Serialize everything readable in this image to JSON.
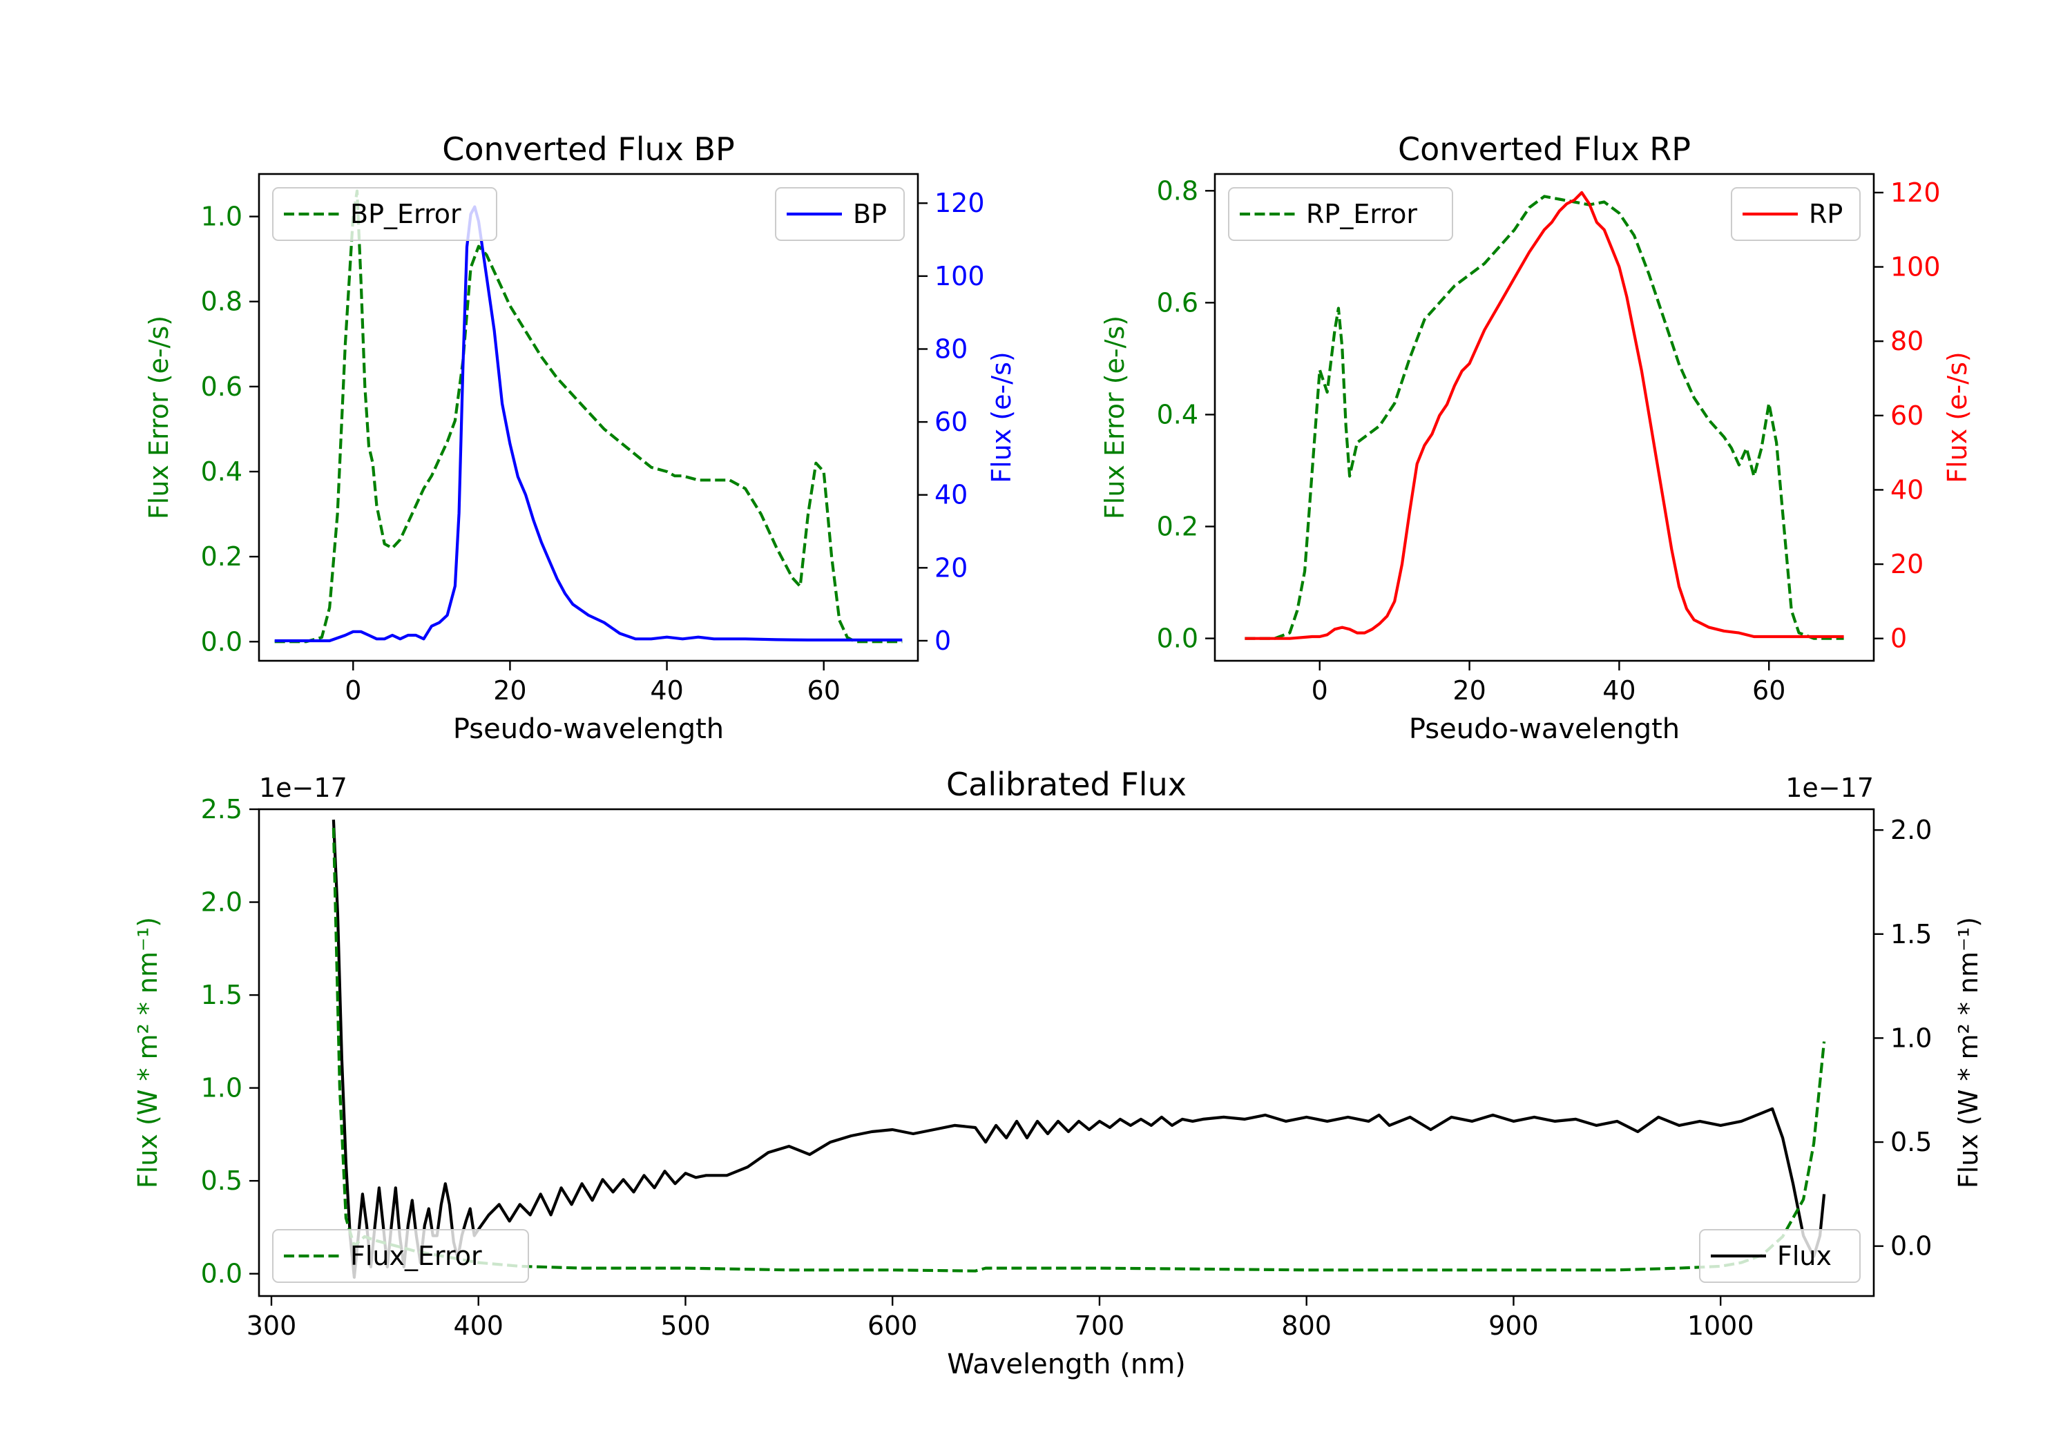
{
  "chart_data": [
    {
      "type": "line",
      "title": "Converted Flux BP",
      "xlabel": "Pseudo-wavelength",
      "ylabel_left": "Flux Error (e-/s)",
      "ylabel_right": "Flux (e-/s)",
      "xlim": [
        -12,
        72
      ],
      "xticks": [
        0,
        20,
        40,
        60
      ],
      "ylim_left": [
        -0.045,
        1.1
      ],
      "yticks_left": [
        0.0,
        0.2,
        0.4,
        0.6,
        0.8,
        1.0
      ],
      "ytick_labels_left": [
        "0.0",
        "0.2",
        "0.4",
        "0.6",
        "0.8",
        "1.0"
      ],
      "ylim_right": [
        -5.5,
        128
      ],
      "yticks_right": [
        0,
        20,
        40,
        60,
        80,
        100,
        120
      ],
      "color_left": "#008000",
      "color_right": "#0000ff",
      "legend_left_placement": "upper-left",
      "legend_right_placement": "upper-right",
      "series": [
        {
          "name": "BP_Error",
          "axis": "left",
          "style": "dashed",
          "color": "#008000",
          "x": [
            -10,
            -6,
            -4,
            -3,
            -2,
            -1,
            0,
            0.5,
            1,
            1.5,
            2,
            2.5,
            3,
            4,
            5,
            6,
            7,
            8,
            9,
            10,
            11,
            12,
            13,
            14,
            15,
            16,
            17,
            18,
            19,
            20,
            22,
            24,
            26,
            28,
            30,
            32,
            34,
            36,
            38,
            40,
            41,
            42,
            44,
            46,
            48,
            50,
            52,
            54,
            56,
            57,
            58,
            59,
            60,
            61,
            62,
            63,
            64,
            66,
            68,
            70
          ],
          "y": [
            0.0,
            0.0,
            0.01,
            0.08,
            0.3,
            0.7,
            1.0,
            1.06,
            0.85,
            0.6,
            0.46,
            0.42,
            0.32,
            0.23,
            0.22,
            0.24,
            0.28,
            0.32,
            0.36,
            0.39,
            0.43,
            0.47,
            0.52,
            0.66,
            0.88,
            0.93,
            0.91,
            0.87,
            0.83,
            0.79,
            0.73,
            0.67,
            0.62,
            0.58,
            0.54,
            0.5,
            0.47,
            0.44,
            0.41,
            0.4,
            0.39,
            0.39,
            0.38,
            0.38,
            0.38,
            0.36,
            0.3,
            0.22,
            0.15,
            0.13,
            0.3,
            0.42,
            0.4,
            0.2,
            0.05,
            0.01,
            0.0,
            0.0,
            0.0,
            0.0
          ]
        },
        {
          "name": "BP",
          "axis": "right",
          "style": "solid",
          "color": "#0000ff",
          "x": [
            -10,
            -6,
            -3,
            -1,
            0,
            1,
            2,
            3,
            4,
            5,
            6,
            7,
            8,
            9,
            10,
            11,
            12,
            13,
            13.5,
            14,
            14.5,
            15,
            15.5,
            16,
            17,
            18,
            19,
            20,
            21,
            22,
            23,
            24,
            25,
            26,
            27,
            28,
            30,
            32,
            34,
            36,
            38,
            40,
            42,
            44,
            46,
            48,
            50,
            54,
            58,
            62,
            66,
            70
          ],
          "y": [
            0,
            0,
            0,
            1.5,
            2.5,
            2.5,
            1.5,
            0.5,
            0.5,
            1.5,
            0.5,
            1.5,
            1.5,
            0.5,
            4,
            5,
            7,
            15,
            35,
            75,
            108,
            117,
            119,
            115,
            100,
            85,
            65,
            54,
            45,
            40,
            33,
            27,
            22,
            17,
            13,
            10,
            7,
            5,
            2,
            0.5,
            0.5,
            1,
            0.5,
            1,
            0.5,
            0.5,
            0.5,
            0.3,
            0.2,
            0.2,
            0.2,
            0.2
          ]
        }
      ]
    },
    {
      "type": "line",
      "title": "Converted Flux RP",
      "xlabel": "Pseudo-wavelength",
      "ylabel_left": "Flux Error (e-/s)",
      "ylabel_right": "Flux (e-/s)",
      "xlim": [
        -14,
        74
      ],
      "xticks": [
        0,
        20,
        40,
        60
      ],
      "ylim_left": [
        -0.04,
        0.83
      ],
      "yticks_left": [
        0.0,
        0.2,
        0.4,
        0.6,
        0.8
      ],
      "ytick_labels_left": [
        "0.0",
        "0.2",
        "0.4",
        "0.6",
        "0.8"
      ],
      "ylim_right": [
        -6,
        125
      ],
      "yticks_right": [
        0,
        20,
        40,
        60,
        80,
        100,
        120
      ],
      "color_left": "#008000",
      "color_right": "#ff0000",
      "legend_left_placement": "upper-left",
      "legend_right_placement": "upper-right",
      "series": [
        {
          "name": "RP_Error",
          "axis": "left",
          "style": "dashed",
          "color": "#008000",
          "x": [
            -10,
            -6,
            -4,
            -3,
            -2,
            -1,
            0,
            1,
            2,
            2.5,
            3,
            3.5,
            4,
            5,
            6,
            7,
            8,
            10,
            12,
            14,
            16,
            18,
            20,
            22,
            24,
            26,
            28,
            30,
            32,
            34,
            36,
            38,
            40,
            42,
            44,
            46,
            48,
            50,
            52,
            54,
            55,
            56,
            57,
            58,
            59,
            60,
            61,
            62,
            63,
            64,
            66,
            70
          ],
          "y": [
            0.0,
            0.0,
            0.01,
            0.05,
            0.12,
            0.3,
            0.48,
            0.44,
            0.55,
            0.59,
            0.52,
            0.38,
            0.29,
            0.35,
            0.36,
            0.37,
            0.38,
            0.42,
            0.5,
            0.57,
            0.6,
            0.63,
            0.65,
            0.67,
            0.7,
            0.73,
            0.77,
            0.79,
            0.785,
            0.78,
            0.775,
            0.78,
            0.76,
            0.72,
            0.65,
            0.57,
            0.49,
            0.43,
            0.39,
            0.36,
            0.34,
            0.31,
            0.34,
            0.29,
            0.34,
            0.42,
            0.35,
            0.2,
            0.05,
            0.01,
            0.0,
            0.0
          ]
        },
        {
          "name": "RP",
          "axis": "right",
          "style": "solid",
          "color": "#ff0000",
          "x": [
            -10,
            -4,
            -1,
            0,
            1,
            2,
            3,
            4,
            5,
            6,
            7,
            8,
            9,
            10,
            11,
            12,
            13,
            14,
            15,
            16,
            17,
            18,
            19,
            20,
            22,
            24,
            26,
            28,
            30,
            31,
            32,
            33,
            34,
            35,
            36,
            37,
            38,
            39,
            40,
            41,
            42,
            43,
            44,
            45,
            46,
            47,
            48,
            49,
            50,
            52,
            54,
            56,
            58,
            60,
            62,
            66,
            70
          ],
          "y": [
            0,
            0,
            0.5,
            0.5,
            1,
            2.5,
            3,
            2.5,
            1.5,
            1.5,
            2.5,
            4,
            6,
            10,
            20,
            34,
            47,
            52,
            55,
            60,
            63,
            68,
            72,
            74,
            83,
            90,
            97,
            104,
            110,
            112,
            115,
            117,
            118,
            120,
            117,
            112,
            110,
            105,
            100,
            92,
            82,
            72,
            60,
            48,
            36,
            24,
            14,
            8,
            5,
            3,
            2,
            1.5,
            0.5,
            0.5,
            0.5,
            0.5,
            0.5
          ]
        }
      ]
    },
    {
      "type": "line",
      "title": "Calibrated Flux",
      "xlabel": "Wavelength (nm)",
      "ylabel_left": "Flux (W * m² * nm⁻¹)",
      "ylabel_right": "Flux (W * m² * nm⁻¹)",
      "offset_left": "1e−17",
      "offset_right": "1e−17",
      "xlim": [
        294,
        1074
      ],
      "xticks": [
        300,
        400,
        500,
        600,
        700,
        800,
        900,
        1000
      ],
      "ylim_left": [
        -0.12,
        2.5
      ],
      "yticks_left": [
        0.0,
        0.5,
        1.0,
        1.5,
        2.0,
        2.5
      ],
      "ytick_labels_left": [
        "0.0",
        "0.5",
        "1.0",
        "1.5",
        "2.0",
        "2.5"
      ],
      "ylim_right": [
        -0.24,
        2.1
      ],
      "yticks_right": [
        0.0,
        0.5,
        1.0,
        1.5,
        2.0
      ],
      "ytick_labels_right": [
        "0.0",
        "0.5",
        "1.0",
        "1.5",
        "2.0"
      ],
      "color_left": "#008000",
      "color_right": "#000000",
      "legend_left_placement": "lower-left",
      "legend_right_placement": "lower-right",
      "series": [
        {
          "name": "Flux",
          "axis": "right",
          "style": "solid",
          "color": "#000000",
          "x": [
            330,
            332,
            334,
            336,
            338,
            340,
            342,
            344,
            346,
            348,
            350,
            352,
            354,
            356,
            358,
            360,
            362,
            364,
            366,
            368,
            370,
            372,
            374,
            376,
            378,
            380,
            382,
            384,
            386,
            388,
            390,
            392,
            394,
            396,
            398,
            400,
            405,
            410,
            415,
            420,
            425,
            430,
            435,
            440,
            445,
            450,
            455,
            460,
            465,
            470,
            475,
            480,
            485,
            490,
            495,
            500,
            505,
            510,
            520,
            530,
            540,
            550,
            560,
            570,
            580,
            590,
            600,
            610,
            620,
            630,
            640,
            645,
            650,
            655,
            660,
            665,
            670,
            675,
            680,
            685,
            690,
            695,
            700,
            705,
            710,
            715,
            720,
            725,
            730,
            735,
            740,
            745,
            750,
            760,
            770,
            780,
            790,
            800,
            810,
            820,
            830,
            835,
            840,
            850,
            860,
            870,
            880,
            890,
            900,
            910,
            920,
            930,
            940,
            950,
            960,
            970,
            980,
            990,
            1000,
            1010,
            1020,
            1025,
            1030,
            1035,
            1040,
            1045,
            1048,
            1050
          ],
          "y": [
            2.05,
            1.6,
            0.9,
            0.4,
            0.05,
            -0.15,
            0.05,
            0.25,
            0.1,
            -0.1,
            0.1,
            0.28,
            0.1,
            -0.1,
            0.1,
            0.28,
            0.05,
            -0.1,
            0.1,
            0.22,
            0.05,
            -0.08,
            0.1,
            0.18,
            0.05,
            0.05,
            0.2,
            0.3,
            0.2,
            0.02,
            -0.06,
            0.05,
            0.12,
            0.18,
            0.05,
            0.08,
            0.15,
            0.2,
            0.12,
            0.2,
            0.15,
            0.25,
            0.15,
            0.28,
            0.2,
            0.3,
            0.22,
            0.32,
            0.26,
            0.32,
            0.26,
            0.34,
            0.28,
            0.36,
            0.3,
            0.35,
            0.33,
            0.34,
            0.34,
            0.38,
            0.45,
            0.48,
            0.44,
            0.5,
            0.53,
            0.55,
            0.56,
            0.54,
            0.56,
            0.58,
            0.57,
            0.5,
            0.58,
            0.52,
            0.6,
            0.52,
            0.6,
            0.54,
            0.6,
            0.55,
            0.6,
            0.56,
            0.6,
            0.57,
            0.61,
            0.58,
            0.61,
            0.58,
            0.62,
            0.58,
            0.61,
            0.6,
            0.61,
            0.62,
            0.61,
            0.63,
            0.6,
            0.62,
            0.6,
            0.62,
            0.6,
            0.63,
            0.58,
            0.62,
            0.56,
            0.62,
            0.6,
            0.63,
            0.6,
            0.62,
            0.6,
            0.61,
            0.58,
            0.6,
            0.55,
            0.62,
            0.58,
            0.6,
            0.58,
            0.6,
            0.64,
            0.66,
            0.52,
            0.3,
            0.05,
            -0.05,
            0.05,
            0.25
          ]
        },
        {
          "name": "Flux_Error",
          "axis": "left",
          "style": "dashed",
          "color": "#008000",
          "x": [
            330,
            333,
            336,
            340,
            345,
            350,
            360,
            370,
            380,
            390,
            400,
            420,
            450,
            500,
            550,
            600,
            640,
            645,
            660,
            700,
            800,
            900,
            950,
            980,
            1000,
            1010,
            1020,
            1030,
            1040,
            1045,
            1050
          ],
          "y": [
            2.4,
            1.0,
            0.3,
            0.15,
            0.2,
            0.18,
            0.15,
            0.12,
            0.1,
            0.08,
            0.06,
            0.04,
            0.03,
            0.03,
            0.02,
            0.02,
            0.015,
            0.03,
            0.03,
            0.03,
            0.02,
            0.02,
            0.02,
            0.03,
            0.04,
            0.06,
            0.1,
            0.2,
            0.4,
            0.7,
            1.25
          ]
        }
      ]
    }
  ]
}
